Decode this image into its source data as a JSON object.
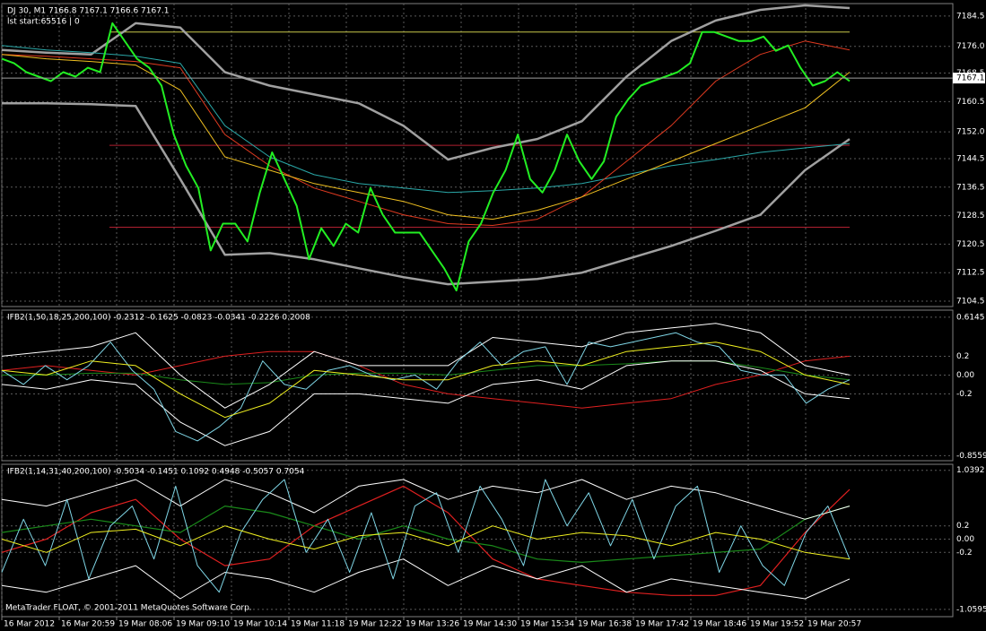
{
  "chart_data": [
    {
      "type": "line",
      "title": "DJ 30, M1  7166.8 7167.1 7166.6 7167.1",
      "subtitle": "lst start:65516 | 0",
      "ylim": [
        7103,
        7188
      ],
      "yticks": [
        7184.5,
        {
          "value": 7176,
          "label": "7176.0"
        },
        7168.5,
        7160.5,
        {
          "value": 7152,
          "label": "7152.0"
        },
        7144.5,
        7136.5,
        7128.5,
        7120.5,
        7112.5,
        7104.5
      ],
      "grid": true,
      "last_price": 7167.1,
      "levels": [
        {
          "value": 7180,
          "color": "#c8c84a"
        },
        {
          "value": 7148.25,
          "color": "#b02030"
        },
        {
          "value": 7125.25,
          "color": "#b02030"
        }
      ],
      "series": [
        {
          "color": "#a0a0a0",
          "width": 2.5,
          "values": [
            7175,
            7174.25,
            7173.75,
            7182.5,
            7181.25,
            7168.75,
            7165,
            7162.5,
            7160,
            7153.75,
            7144.25,
            7147.5,
            7150,
            7155,
            7167.5,
            7177.5,
            7183.25,
            7186.25,
            7187.5,
            7186.75
          ]
        },
        {
          "color": "#a0a0a0",
          "width": 2.5,
          "values": [
            7160,
            7160,
            7159.75,
            7159.25,
            7138.75,
            7117.5,
            7118,
            7116.25,
            7113.75,
            7111.25,
            7109.25,
            7110,
            7110.75,
            7112.5,
            7116.25,
            7120,
            7124.25,
            7128.75,
            7141.25,
            7150
          ]
        },
        {
          "color": "#2aa8a8",
          "width": 1,
          "values": [
            7176.25,
            7175,
            7174.25,
            7173.25,
            7171.25,
            7153.75,
            7145,
            7140,
            7137.5,
            7136.25,
            7135,
            7135.5,
            7136.25,
            7137.5,
            7140,
            7142.5,
            7144.25,
            7146.25,
            7147.5,
            7148.75
          ]
        },
        {
          "color": "#e03a20",
          "width": 1,
          "values": [
            7173.75,
            7173.25,
            7172.5,
            7171.75,
            7170,
            7151.25,
            7142.5,
            7136.25,
            7132.5,
            7128.75,
            7126.25,
            7125.75,
            7127.5,
            7133.75,
            7143.75,
            7153.75,
            7166.25,
            7173.75,
            7177.5,
            7175
          ]
        },
        {
          "color": "#f0c020",
          "width": 1,
          "values": [
            7173.75,
            7172.5,
            7171.75,
            7170.75,
            7163.75,
            7145,
            7141.25,
            7137.5,
            7135,
            7132.5,
            7128.75,
            7127.5,
            7130,
            7133.75,
            7138.75,
            7143.75,
            7148.75,
            7153.75,
            7158.75,
            7168.75
          ]
        },
        {
          "color": "#22ee22",
          "width": 2,
          "values": [
            7172.5,
            7171.25,
            7168.75,
            7167.5,
            7166.25,
            7168.75,
            7167.5,
            7170,
            7168.75,
            7182.5,
            7177.5,
            7172.5,
            7170,
            7165,
            7151.25,
            7142.5,
            7136.25,
            7118.75,
            7126.25,
            7126.25,
            7121.25,
            7135,
            7146.25,
            7138.75,
            7131.25,
            7116.25,
            7125,
            7120,
            7126.25,
            7123.75,
            7136.25,
            7128.75,
            7123.75,
            7123.75,
            7123.75,
            7118.75,
            7113.75,
            7107.5,
            7121.25,
            7126.25,
            7135,
            7141.25,
            7151.25,
            7138.75,
            7135,
            7141.25,
            7151.25,
            7143.75,
            7138.75,
            7143.75,
            7156.25,
            7161.25,
            7165,
            7166.25,
            7167.5,
            7168.75,
            7171.25,
            7180,
            7180,
            7178.75,
            7177.5,
            7177.5,
            7178.75,
            7174.75,
            7176.25,
            7170,
            7165,
            7166.25,
            7168.75,
            7166.25
          ]
        }
      ]
    },
    {
      "type": "line",
      "title": "IFB2(1,50,18,25,200,100) -0.2312 -0.1625 -0.0823 -0.0341 -0.2226 0.2008",
      "ylim": [
        -0.91,
        0.69
      ],
      "yticks": [
        0.6145,
        0.2,
        {
          "value": 0,
          "label": "0.00"
        },
        -0.2,
        -0.8559
      ],
      "grid": true,
      "series": [
        {
          "color": "#e02020",
          "width": 1,
          "values": [
            0.05,
            0.1,
            0.05,
            0,
            0.1,
            0.2,
            0.25,
            0.25,
            0.1,
            -0.1,
            -0.2,
            -0.25,
            -0.3,
            -0.35,
            -0.3,
            -0.25,
            -0.1,
            0,
            0.15,
            0.2
          ]
        },
        {
          "color": "#1a8a1a",
          "width": 1,
          "values": [
            0,
            0,
            0.02,
            0.02,
            -0.05,
            -0.1,
            -0.08,
            0,
            0.02,
            0.02,
            0,
            0.05,
            0.1,
            0.1,
            0.12,
            0.15,
            0.15,
            0.08,
            0,
            -0.05
          ]
        },
        {
          "color": "#ffffff",
          "width": 1,
          "values": [
            0.2,
            0.25,
            0.3,
            0.45,
            0,
            -0.35,
            -0.1,
            0.25,
            0.1,
            0.1,
            0.1,
            0.4,
            0.35,
            0.3,
            0.45,
            0.5,
            0.55,
            0.45,
            0.1,
            0
          ]
        },
        {
          "color": "#ffffff",
          "width": 1,
          "values": [
            -0.1,
            -0.15,
            -0.05,
            -0.1,
            -0.5,
            -0.75,
            -0.6,
            -0.2,
            -0.2,
            -0.25,
            -0.3,
            -0.1,
            -0.05,
            -0.15,
            0.1,
            0.15,
            0.15,
            0.05,
            -0.2,
            -0.25
          ]
        },
        {
          "color": "#7fd6e6",
          "width": 1,
          "values": [
            0.05,
            -0.1,
            0.1,
            -0.05,
            0.1,
            0.35,
            0.05,
            -0.15,
            -0.6,
            -0.7,
            -0.55,
            -0.35,
            0.15,
            -0.1,
            -0.15,
            0.05,
            0.1,
            0,
            -0.05,
            0,
            -0.15,
            0.15,
            0.35,
            0.1,
            0.25,
            0.3,
            -0.1,
            0.35,
            0.3,
            0.35,
            0.4,
            0.45,
            0.35,
            0.3,
            0.05,
            0,
            0,
            -0.3,
            -0.15,
            -0.05
          ]
        },
        {
          "color": "#f0f020",
          "width": 1,
          "values": [
            0.05,
            0,
            0.15,
            0.1,
            -0.2,
            -0.45,
            -0.3,
            0.05,
            0,
            -0.05,
            -0.05,
            0.1,
            0.15,
            0.1,
            0.25,
            0.3,
            0.35,
            0.25,
            0,
            -0.1
          ]
        }
      ]
    },
    {
      "type": "line",
      "title": "IFB2(1,14,31,40,200,100) -0.5034 -0.1451 0.1092 0.4948 -0.5057 0.7054",
      "ylim": [
        -1.17,
        1.13
      ],
      "yticks": [
        1.0392,
        0.2,
        {
          "value": 0,
          "label": "0.00"
        },
        -0.2,
        -1.0595
      ],
      "grid": true,
      "series": [
        {
          "color": "#e02020",
          "width": 1.2,
          "values": [
            -0.2,
            0,
            0.4,
            0.6,
            0,
            -0.4,
            -0.3,
            0.2,
            0.5,
            0.8,
            0.4,
            -0.3,
            -0.6,
            -0.7,
            -0.8,
            -0.85,
            -0.85,
            -0.7,
            0.1,
            0.75
          ]
        },
        {
          "color": "#1a8a1a",
          "width": 1.2,
          "values": [
            0.1,
            0.2,
            0.3,
            0.2,
            0.1,
            0.5,
            0.4,
            0.2,
            0,
            0.2,
            0,
            -0.1,
            -0.3,
            -0.35,
            -0.3,
            -0.25,
            -0.2,
            -0.15,
            0.3,
            0.5
          ]
        },
        {
          "color": "#ffffff",
          "width": 1,
          "values": [
            0.6,
            0.5,
            0.7,
            0.9,
            0.5,
            0.9,
            0.7,
            0.4,
            0.8,
            0.9,
            0.6,
            0.8,
            0.7,
            0.9,
            0.6,
            0.8,
            0.7,
            0.5,
            0.3,
            0.5
          ]
        },
        {
          "color": "#ffffff",
          "width": 1,
          "values": [
            -0.7,
            -0.8,
            -0.6,
            -0.4,
            -0.9,
            -0.5,
            -0.6,
            -0.8,
            -0.5,
            -0.3,
            -0.7,
            -0.4,
            -0.6,
            -0.4,
            -0.8,
            -0.6,
            -0.7,
            -0.8,
            -0.9,
            -0.6
          ]
        },
        {
          "color": "#7fd6e6",
          "width": 1,
          "values": [
            -0.5,
            0.3,
            -0.4,
            0.6,
            -0.6,
            0.2,
            0.5,
            -0.3,
            0.8,
            -0.4,
            -0.8,
            0.1,
            0.6,
            0.9,
            -0.2,
            0.3,
            -0.5,
            0.4,
            -0.6,
            0.5,
            0.7,
            -0.2,
            0.8,
            0.3,
            -0.4,
            0.9,
            0.2,
            0.7,
            -0.1,
            0.6,
            -0.3,
            0.5,
            0.8,
            -0.5,
            0.2,
            -0.4,
            -0.7,
            0.1,
            0.5,
            -0.3
          ]
        },
        {
          "color": "#f0f020",
          "width": 1,
          "values": [
            0,
            -0.2,
            0.1,
            0.15,
            -0.1,
            0.2,
            0,
            -0.15,
            0.05,
            0.1,
            -0.1,
            0.2,
            0,
            0.1,
            0.05,
            -0.1,
            0.1,
            0,
            -0.2,
            -0.3
          ]
        }
      ]
    }
  ],
  "time_axis": [
    "16 Mar 2012",
    "16 Mar 20:59",
    "19 Mar 08:06",
    "19 Mar 09:10",
    "19 Mar 10:14",
    "19 Mar 11:18",
    "19 Mar 12:22",
    "19 Mar 13:26",
    "19 Mar 14:30",
    "19 Mar 15:34",
    "19 Mar 16:38",
    "19 Mar 17:42",
    "19 Mar 18:46",
    "19 Mar 19:52",
    "19 Mar 20:57"
  ],
  "footer": "MetaTrader FLOAT, © 2001-2011 MetaQuotes Software Corp."
}
